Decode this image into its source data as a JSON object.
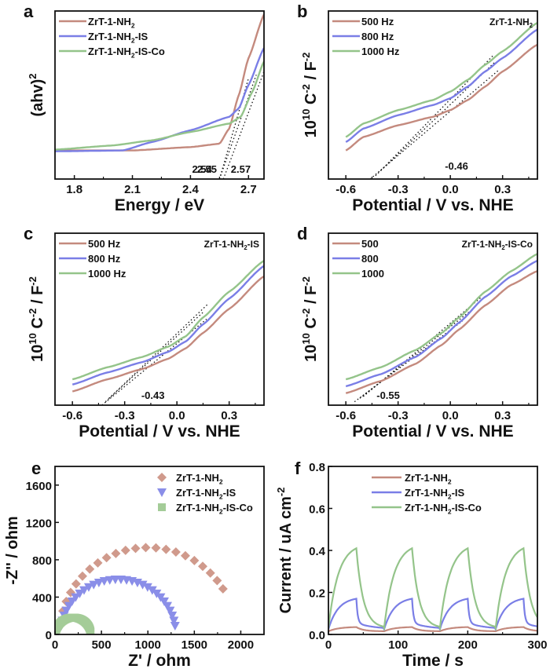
{
  "colors": {
    "red": "#c48a7e",
    "blue": "#7a7ee6",
    "green": "#94c48a",
    "diamond": "#d09a8c",
    "triangle": "#8a8ee8",
    "square": "#a4cc98"
  },
  "chart_data": [
    {
      "panel": "a",
      "type": "line",
      "xlabel": "Energy / eV",
      "ylabel": "(ahv)²",
      "xlim": [
        1.7,
        2.78
      ],
      "ylim": [
        0,
        1
      ],
      "xticks": [
        "1.8",
        "2.1",
        "2.4",
        "2.7"
      ],
      "yticks": [],
      "legend": [
        "ZrT-1-NH₂",
        "ZrT-1-NH₂-IS",
        "ZrT-1-NH₂-IS-Co"
      ],
      "legend_position": "top-left",
      "annotations": [
        "2.54",
        "2.55",
        "2.57"
      ],
      "series": [
        {
          "name": "ZrT-1-NH₂",
          "color": "red",
          "x": [
            1.7,
            2.1,
            2.4,
            2.55,
            2.6,
            2.65,
            2.7,
            2.78
          ],
          "y": [
            0.17,
            0.17,
            0.19,
            0.21,
            0.3,
            0.5,
            0.72,
            0.98
          ]
        },
        {
          "name": "ZrT-1-NH₂-IS",
          "color": "blue",
          "x": [
            1.7,
            2.05,
            2.2,
            2.4,
            2.6,
            2.65,
            2.7,
            2.78
          ],
          "y": [
            0.165,
            0.17,
            0.22,
            0.29,
            0.37,
            0.42,
            0.56,
            0.78
          ]
        },
        {
          "name": "ZrT-1-NH₂-IS-Co",
          "color": "green",
          "x": [
            1.7,
            2.0,
            2.2,
            2.4,
            2.6,
            2.66,
            2.72,
            2.78
          ],
          "y": [
            0.175,
            0.2,
            0.23,
            0.28,
            0.33,
            0.37,
            0.52,
            0.7
          ]
        }
      ],
      "fits": [
        {
          "x": [
            2.55,
            2.7
          ],
          "y": [
            0.0,
            0.6
          ]
        },
        {
          "x": [
            2.55,
            2.74
          ],
          "y": [
            0.0,
            0.62
          ]
        },
        {
          "x": [
            2.57,
            2.78
          ],
          "y": [
            0.0,
            0.64
          ]
        }
      ]
    },
    {
      "panel": "b",
      "type": "line",
      "xlabel": "Potential / V vs. NHE",
      "ylabel": "10¹⁰ C⁻² / F⁻²",
      "xlim": [
        -0.7,
        0.5
      ],
      "ylim": [
        0,
        1
      ],
      "xticks": [
        "-0.6",
        "-0.3",
        "0.0",
        "0.3"
      ],
      "sample": "ZrT-1-NH₂",
      "legend": [
        "500 Hz",
        "800 Hz",
        "1000 Hz"
      ],
      "legend_position": "top-left",
      "annotations": [
        "-0.46"
      ],
      "series": [
        {
          "name": "500 Hz",
          "color": "red",
          "x": [
            -0.6,
            -0.5,
            -0.3,
            -0.1,
            0.0,
            0.1,
            0.2,
            0.3,
            0.5
          ],
          "y": [
            0.17,
            0.25,
            0.32,
            0.37,
            0.41,
            0.47,
            0.55,
            0.64,
            0.8
          ]
        },
        {
          "name": "800 Hz",
          "color": "blue",
          "x": [
            -0.6,
            -0.5,
            -0.3,
            -0.1,
            0.0,
            0.1,
            0.2,
            0.3,
            0.5
          ],
          "y": [
            0.22,
            0.3,
            0.38,
            0.44,
            0.48,
            0.55,
            0.64,
            0.72,
            0.89
          ]
        },
        {
          "name": "1000 Hz",
          "color": "green",
          "x": [
            -0.6,
            -0.5,
            -0.3,
            -0.1,
            0.0,
            0.1,
            0.2,
            0.3,
            0.5
          ],
          "y": [
            0.25,
            0.33,
            0.41,
            0.47,
            0.52,
            0.59,
            0.68,
            0.76,
            0.93
          ]
        }
      ],
      "fits": [
        {
          "x": [
            -0.46,
            0.28
          ],
          "y": [
            0.0,
            0.65
          ]
        },
        {
          "x": [
            -0.43,
            0.26
          ],
          "y": [
            0.02,
            0.7
          ]
        },
        {
          "x": [
            -0.4,
            0.25
          ],
          "y": [
            0.05,
            0.74
          ]
        }
      ]
    },
    {
      "panel": "c",
      "type": "line",
      "xlabel": "Potential / V vs. NHE",
      "ylabel": "10¹⁰ C⁻² / F⁻²",
      "xlim": [
        -0.7,
        0.5
      ],
      "ylim": [
        0,
        1
      ],
      "xticks": [
        "-0.6",
        "-0.3",
        "0.0",
        "0.3"
      ],
      "sample": "ZrT-1-NH₂-IS",
      "legend": [
        "500 Hz",
        "800 Hz",
        "1000 Hz"
      ],
      "legend_position": "top-left",
      "annotations": [
        "-0.43"
      ],
      "series": [
        {
          "name": "500 Hz",
          "color": "red",
          "x": [
            -0.6,
            -0.4,
            -0.2,
            -0.05,
            0.05,
            0.15,
            0.3,
            0.5
          ],
          "y": [
            0.08,
            0.15,
            0.21,
            0.27,
            0.33,
            0.42,
            0.56,
            0.75
          ]
        },
        {
          "name": "800 Hz",
          "color": "blue",
          "x": [
            -0.6,
            -0.4,
            -0.2,
            -0.05,
            0.05,
            0.15,
            0.3,
            0.5
          ],
          "y": [
            0.12,
            0.19,
            0.25,
            0.31,
            0.37,
            0.47,
            0.62,
            0.81
          ]
        },
        {
          "name": "1000 Hz",
          "color": "green",
          "x": [
            -0.6,
            -0.4,
            -0.2,
            -0.05,
            0.05,
            0.15,
            0.3,
            0.5
          ],
          "y": [
            0.15,
            0.22,
            0.28,
            0.34,
            0.4,
            0.51,
            0.66,
            0.84
          ]
        }
      ],
      "fits": [
        {
          "x": [
            -0.43,
            0.17
          ],
          "y": [
            0.0,
            0.5
          ]
        },
        {
          "x": [
            -0.41,
            0.15
          ],
          "y": [
            0.02,
            0.54
          ]
        },
        {
          "x": [
            -0.39,
            0.18
          ],
          "y": [
            0.04,
            0.59
          ]
        }
      ]
    },
    {
      "panel": "d",
      "type": "line",
      "xlabel": "Potential / V vs. NHE",
      "ylabel": "10¹⁰ C⁻² / F⁻²",
      "xlim": [
        -0.7,
        0.5
      ],
      "ylim": [
        0,
        1
      ],
      "xticks": [
        "-0.6",
        "-0.3",
        "0.0",
        "0.3"
      ],
      "sample": "ZrT-1-NH₂-IS-Co",
      "legend": [
        "500",
        "800",
        "1000"
      ],
      "legend_position": "top-left",
      "annotations": [
        "-0.55"
      ],
      "series": [
        {
          "name": "500",
          "color": "red",
          "x": [
            -0.6,
            -0.4,
            -0.2,
            -0.05,
            0.05,
            0.2,
            0.35,
            0.5
          ],
          "y": [
            0.07,
            0.14,
            0.24,
            0.35,
            0.44,
            0.58,
            0.7,
            0.78
          ]
        },
        {
          "name": "800",
          "color": "blue",
          "x": [
            -0.6,
            -0.4,
            -0.2,
            -0.05,
            0.05,
            0.2,
            0.35,
            0.5
          ],
          "y": [
            0.11,
            0.18,
            0.28,
            0.39,
            0.48,
            0.63,
            0.75,
            0.84
          ]
        },
        {
          "name": "1000",
          "color": "green",
          "x": [
            -0.6,
            -0.4,
            -0.2,
            -0.05,
            0.05,
            0.2,
            0.35,
            0.5
          ],
          "y": [
            0.15,
            0.22,
            0.32,
            0.42,
            0.51,
            0.66,
            0.78,
            0.88
          ]
        }
      ],
      "fits": [
        {
          "x": [
            -0.55,
            0.07
          ],
          "y": [
            0.02,
            0.49
          ]
        },
        {
          "x": [
            -0.52,
            0.13
          ],
          "y": [
            0.04,
            0.56
          ]
        },
        {
          "x": [
            -0.5,
            0.18
          ],
          "y": [
            0.05,
            0.63
          ]
        }
      ]
    },
    {
      "panel": "e",
      "type": "scatter",
      "xlabel": "Z' / ohm",
      "ylabel": "-Z'' / ohm",
      "xlim": [
        0,
        2250
      ],
      "ylim": [
        0,
        1800
      ],
      "xticks": [
        "0",
        "500",
        "1000",
        "1500",
        "2000"
      ],
      "yticks": [
        "0",
        "400",
        "800",
        "1200",
        "1600"
      ],
      "legend": [
        "ZrT-1-NH₂",
        "ZrT-1-NH₂-IS",
        "ZrT-1-NH₂-IS-Co"
      ],
      "legend_position": "top-right",
      "series": [
        {
          "name": "ZrT-1-NH₂",
          "marker": "diamond",
          "color": "diamond",
          "center": 1000,
          "radius": 950,
          "points": 22
        },
        {
          "name": "ZrT-1-NH₂-IS",
          "marker": "triangle-down",
          "color": "triangle",
          "center": 680,
          "radius": 620,
          "points": 30
        },
        {
          "name": "ZrT-1-NH₂-IS-Co",
          "marker": "square",
          "color": "square",
          "center": 195,
          "radius": 190,
          "points": 60
        }
      ]
    },
    {
      "panel": "f",
      "type": "line",
      "xlabel": "Time / s",
      "ylabel": "Current / uA cm⁻²",
      "xlim": [
        0,
        300
      ],
      "ylim": [
        0,
        0.8
      ],
      "xticks": [
        "0",
        "100",
        "200",
        "300"
      ],
      "yticks": [
        "0.0",
        "0.2",
        "0.4",
        "0.6",
        "0.8"
      ],
      "legend": [
        "ZrT-1-NH₂",
        "ZrT-1-NH₂-IS",
        "ZrT-1-NH₂-IS-Co"
      ],
      "legend_position": "top-right",
      "on_off_period_s": 80,
      "light_on_s": 40,
      "series": [
        {
          "name": "ZrT-1-NH₂",
          "color": "red",
          "peak": 0.035,
          "base": 0.015
        },
        {
          "name": "ZrT-1-NH₂-IS",
          "color": "blue",
          "peak": 0.17,
          "base": 0.025
        },
        {
          "name": "ZrT-1-NH₂-IS-Co",
          "color": "green",
          "peak": 0.41,
          "base": 0.03
        }
      ]
    }
  ]
}
